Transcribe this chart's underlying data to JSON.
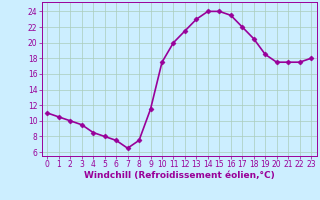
{
  "x": [
    0,
    1,
    2,
    3,
    4,
    5,
    6,
    7,
    8,
    9,
    10,
    11,
    12,
    13,
    14,
    15,
    16,
    17,
    18,
    19,
    20,
    21,
    22,
    23
  ],
  "y": [
    11,
    10.5,
    10,
    9.5,
    8.5,
    8,
    7.5,
    6.5,
    7.5,
    11.5,
    17.5,
    20,
    21.5,
    23,
    24,
    24,
    23.5,
    22,
    20.5,
    18.5,
    17.5,
    17.5,
    17.5,
    18
  ],
  "line_color": "#990099",
  "marker": "D",
  "marker_size": 2.5,
  "background_color": "#cceeff",
  "grid_color": "#aaccbb",
  "xlabel": "Windchill (Refroidissement éolien,°C)",
  "xlabel_fontsize": 6.5,
  "xlim": [
    -0.5,
    23.5
  ],
  "ylim": [
    5.5,
    25.2
  ],
  "yticks": [
    6,
    8,
    10,
    12,
    14,
    16,
    18,
    20,
    22,
    24
  ],
  "xticks": [
    0,
    1,
    2,
    3,
    4,
    5,
    6,
    7,
    8,
    9,
    10,
    11,
    12,
    13,
    14,
    15,
    16,
    17,
    18,
    19,
    20,
    21,
    22,
    23
  ],
  "tick_fontsize": 5.5,
  "line_width": 1.2
}
